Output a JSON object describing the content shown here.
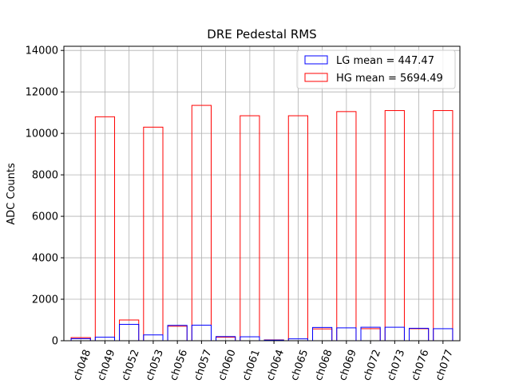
{
  "chart_data": {
    "type": "bar",
    "title": "DRE Pedestal RMS",
    "xlabel": "",
    "ylabel": "ADC Counts",
    "ylim": [
      0,
      14200
    ],
    "yticks": [
      0,
      2000,
      4000,
      6000,
      8000,
      10000,
      12000,
      14000
    ],
    "grid": true,
    "legend_position": "top-right",
    "categories": [
      "ch048",
      "ch049",
      "ch052",
      "ch053",
      "ch056",
      "ch057",
      "ch060",
      "ch061",
      "ch064",
      "ch065",
      "ch068",
      "ch069",
      "ch072",
      "ch073",
      "ch076",
      "ch077"
    ],
    "series": [
      {
        "name": "LG mean = 447.47",
        "color": "#0000ff",
        "values": [
          100,
          170,
          790,
          280,
          740,
          750,
          200,
          190,
          30,
          90,
          640,
          620,
          650,
          650,
          600,
          580
        ]
      },
      {
        "name": "HG mean = 5694.49",
        "color": "#ff0000",
        "values": [
          150,
          10800,
          1000,
          10300,
          700,
          11350,
          170,
          10850,
          40,
          10850,
          570,
          11050,
          580,
          11100,
          580,
          11100
        ]
      }
    ]
  }
}
